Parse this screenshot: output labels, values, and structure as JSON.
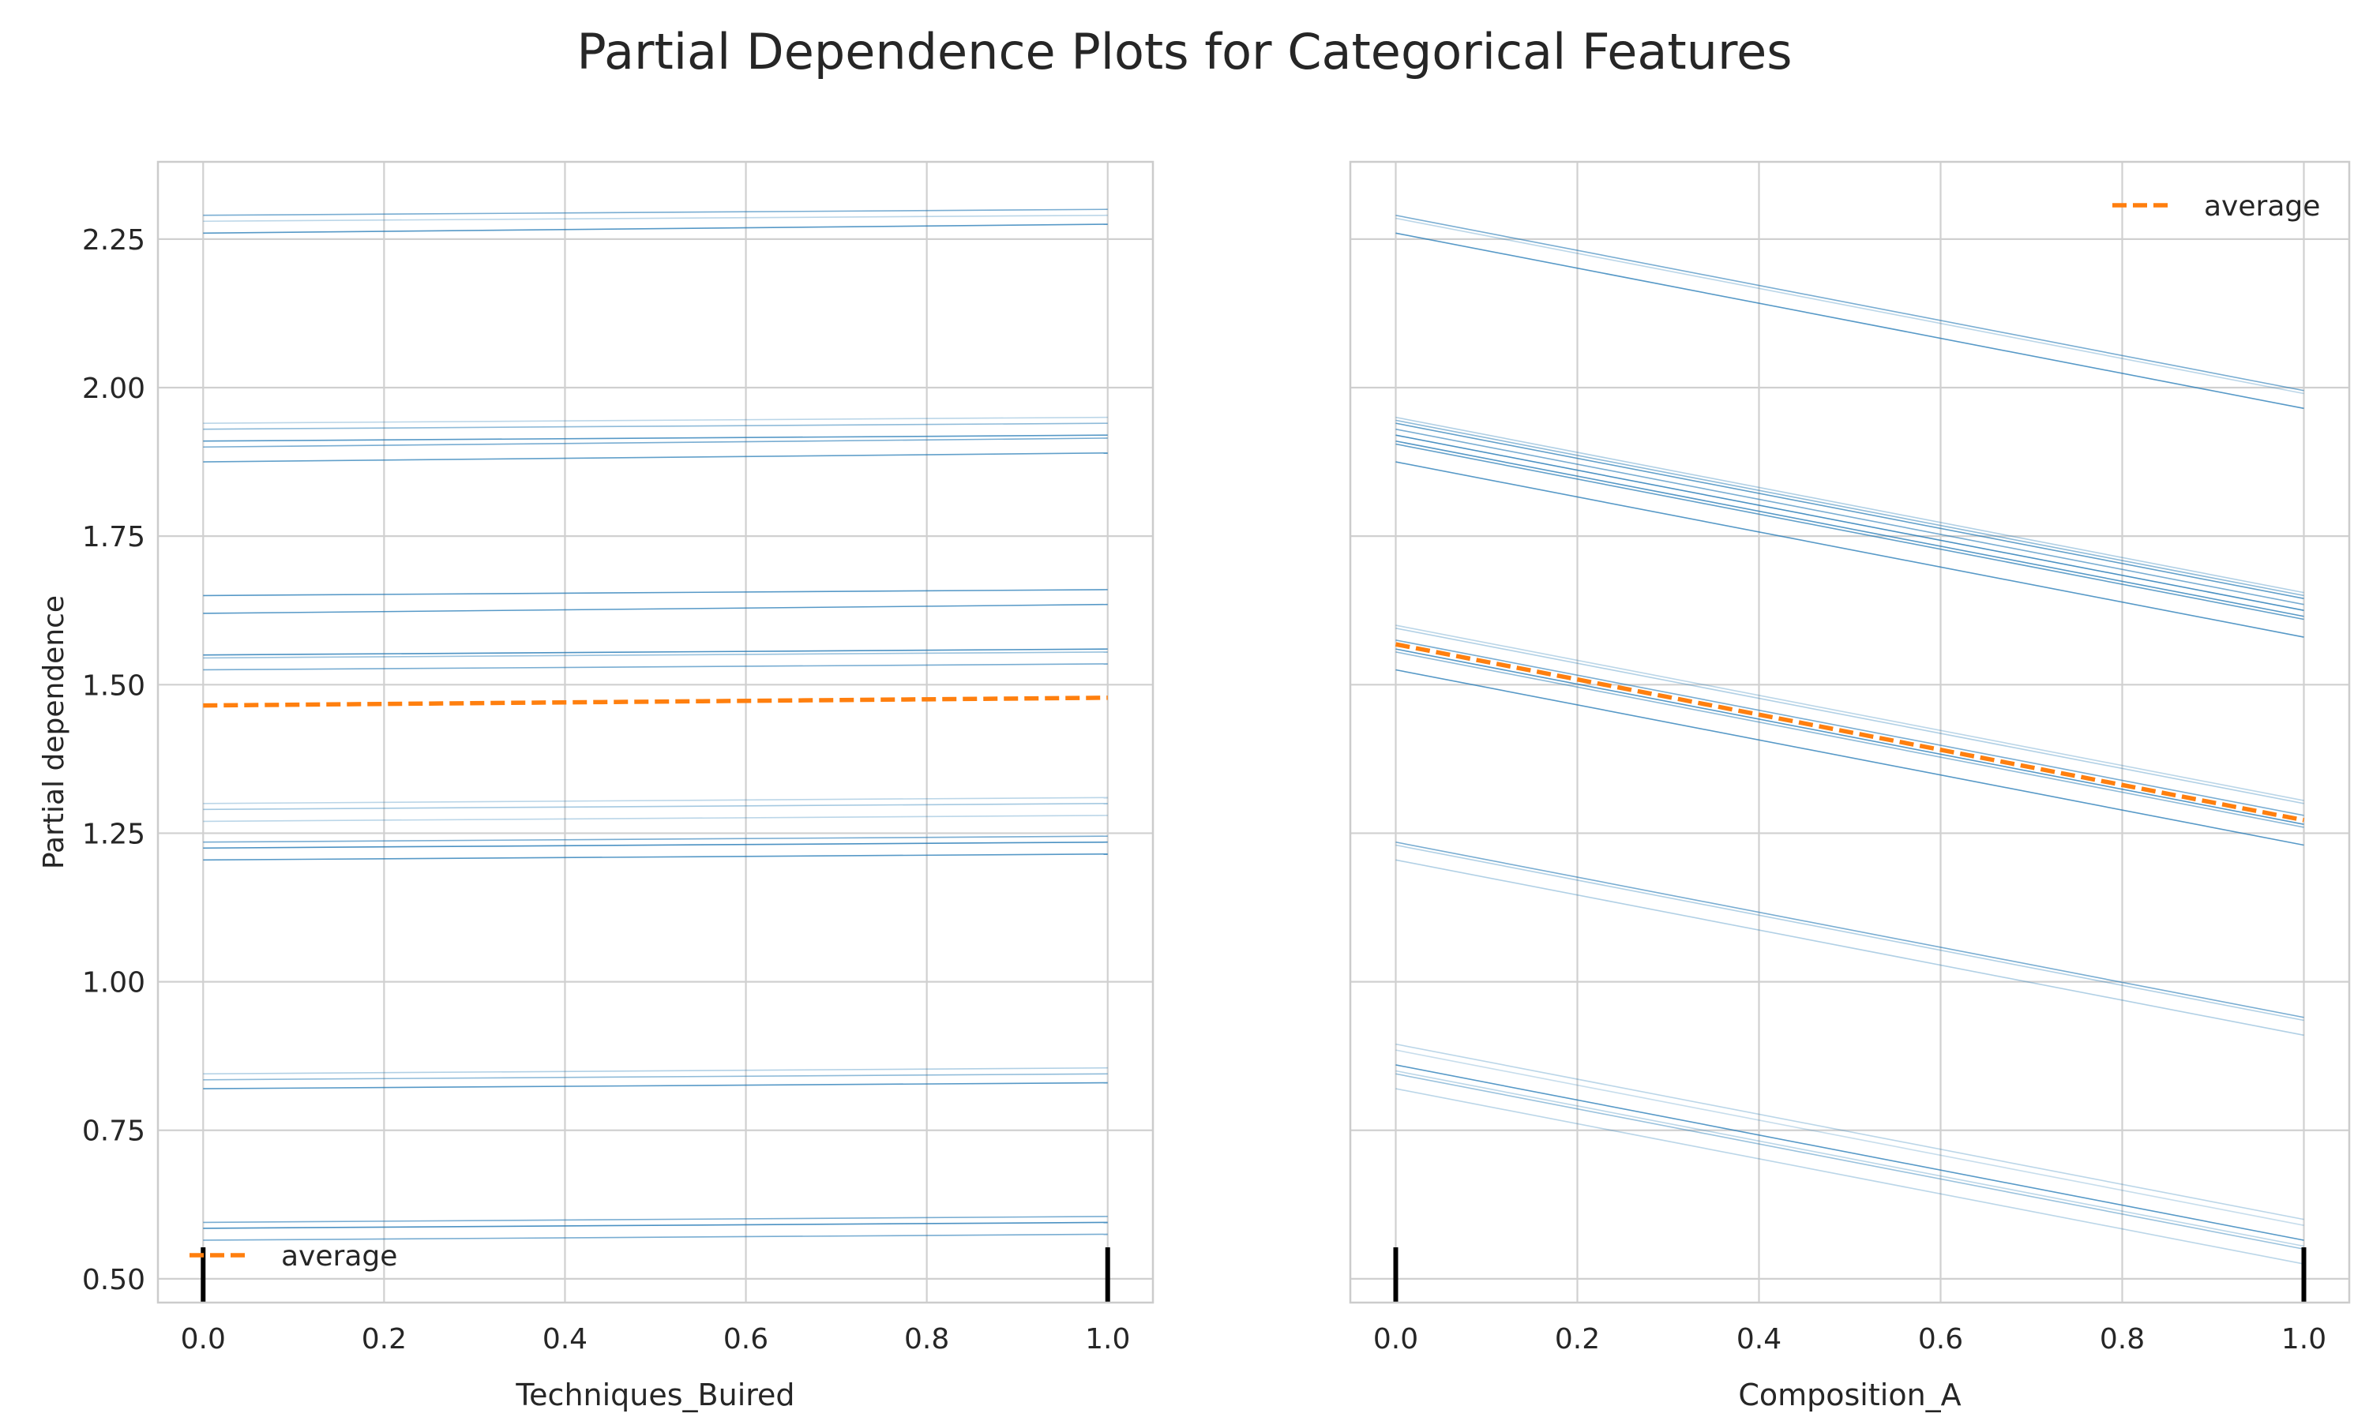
{
  "figure_title": "Partial Dependence Plots for Categorical Features",
  "chart_data": [
    {
      "type": "line",
      "xlabel": "Techniques_Buired",
      "ylabel": "Partial dependence",
      "xlim": [
        -0.05,
        1.05
      ],
      "ylim": [
        0.46,
        2.38
      ],
      "x_ticks": [
        0.0,
        0.2,
        0.4,
        0.6,
        0.8,
        1.0
      ],
      "x_tick_labels": [
        "0.0",
        "0.2",
        "0.4",
        "0.6",
        "0.8",
        "1.0"
      ],
      "y_ticks": [
        0.5,
        0.75,
        1.0,
        1.25,
        1.5,
        1.75,
        2.0,
        2.25
      ],
      "y_tick_labels": [
        "0.50",
        "0.75",
        "1.00",
        "1.25",
        "1.50",
        "1.75",
        "2.00",
        "2.25"
      ],
      "grid": true,
      "legend": {
        "label": "average",
        "placement": "lower-left"
      },
      "rug": [
        0.0,
        1.0
      ],
      "ice_color": "#1f77b4",
      "average_color": "#ff7f0e",
      "x": [
        0.0,
        1.0
      ],
      "ice_lines": [
        [
          2.29,
          2.3
        ],
        [
          2.28,
          2.29
        ],
        [
          2.26,
          2.275
        ],
        [
          1.94,
          1.95
        ],
        [
          1.93,
          1.94
        ],
        [
          1.91,
          1.92
        ],
        [
          1.9,
          1.915
        ],
        [
          1.875,
          1.89
        ],
        [
          1.65,
          1.66
        ],
        [
          1.62,
          1.635
        ],
        [
          1.55,
          1.56
        ],
        [
          1.545,
          1.555
        ],
        [
          1.525,
          1.535
        ],
        [
          1.3,
          1.31
        ],
        [
          1.29,
          1.3
        ],
        [
          1.27,
          1.28
        ],
        [
          1.235,
          1.245
        ],
        [
          1.225,
          1.235
        ],
        [
          1.205,
          1.215
        ],
        [
          0.845,
          0.855
        ],
        [
          0.835,
          0.845
        ],
        [
          0.82,
          0.83
        ],
        [
          0.595,
          0.605
        ],
        [
          0.585,
          0.595
        ],
        [
          0.565,
          0.575
        ]
      ],
      "ice_opacity": [
        0.6,
        0.3,
        0.75,
        0.3,
        0.5,
        0.75,
        0.6,
        0.7,
        0.75,
        0.75,
        0.8,
        0.45,
        0.6,
        0.3,
        0.4,
        0.3,
        0.6,
        0.8,
        0.75,
        0.35,
        0.5,
        0.75,
        0.6,
        0.8,
        0.6
      ],
      "average": [
        1.465,
        1.478
      ]
    },
    {
      "type": "line",
      "xlabel": "Composition_A",
      "ylabel": "",
      "xlim": [
        -0.05,
        1.05
      ],
      "ylim": [
        0.46,
        2.38
      ],
      "x_ticks": [
        0.0,
        0.2,
        0.4,
        0.6,
        0.8,
        1.0
      ],
      "x_tick_labels": [
        "0.0",
        "0.2",
        "0.4",
        "0.6",
        "0.8",
        "1.0"
      ],
      "grid": true,
      "legend": {
        "label": "average",
        "placement": "upper-right"
      },
      "rug": [
        0.0,
        1.0
      ],
      "ice_color": "#1f77b4",
      "average_color": "#ff7f0e",
      "x": [
        0.0,
        1.0
      ],
      "ice_lines": [
        [
          2.29,
          1.995
        ],
        [
          2.285,
          1.99
        ],
        [
          2.26,
          1.965
        ],
        [
          1.95,
          1.655
        ],
        [
          1.945,
          1.65
        ],
        [
          1.94,
          1.645
        ],
        [
          1.93,
          1.635
        ],
        [
          1.92,
          1.625
        ],
        [
          1.91,
          1.615
        ],
        [
          1.905,
          1.61
        ],
        [
          1.875,
          1.58
        ],
        [
          1.6,
          1.305
        ],
        [
          1.595,
          1.3
        ],
        [
          1.575,
          1.28
        ],
        [
          1.56,
          1.265
        ],
        [
          1.555,
          1.26
        ],
        [
          1.525,
          1.23
        ],
        [
          1.235,
          0.94
        ],
        [
          1.23,
          0.935
        ],
        [
          1.205,
          0.91
        ],
        [
          0.895,
          0.6
        ],
        [
          0.885,
          0.59
        ],
        [
          0.86,
          0.565
        ],
        [
          0.85,
          0.555
        ],
        [
          0.845,
          0.55
        ],
        [
          0.82,
          0.525
        ]
      ],
      "ice_opacity": [
        0.6,
        0.3,
        0.75,
        0.35,
        0.5,
        0.7,
        0.6,
        0.8,
        0.75,
        0.7,
        0.75,
        0.3,
        0.35,
        0.6,
        0.75,
        0.5,
        0.75,
        0.6,
        0.35,
        0.35,
        0.3,
        0.25,
        0.75,
        0.3,
        0.45,
        0.3
      ],
      "average": [
        1.568,
        1.272
      ]
    }
  ]
}
